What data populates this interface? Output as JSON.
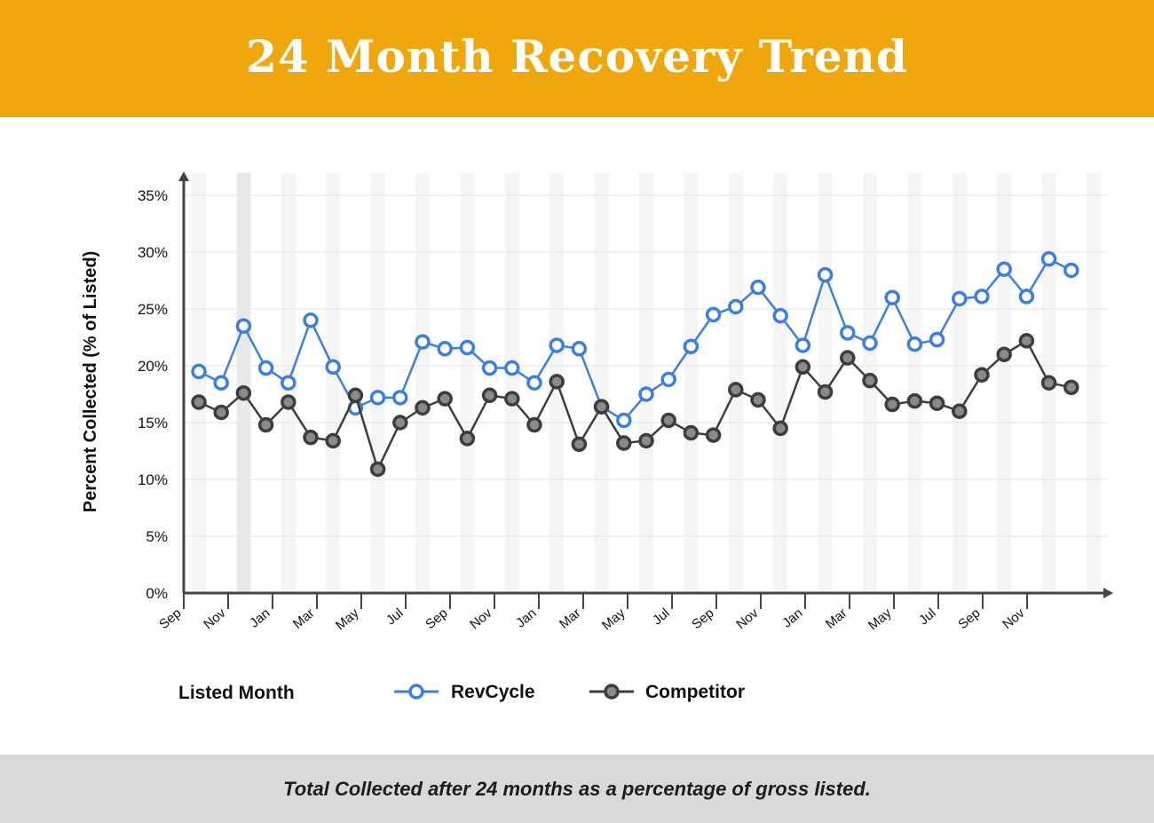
{
  "header": {
    "title": "24 Month Recovery Trend"
  },
  "footer": {
    "caption": "Total Collected after 24 months as a percentage of gross listed."
  },
  "colors": {
    "header_bg": "#f0a70c",
    "revcycle": "#3a7ee8",
    "competitor": "#3d3d3d",
    "footer_bg": "#d9d9d9"
  },
  "chart_data": {
    "type": "line",
    "title": "24 Month Recovery Trend",
    "xlabel": "Listed Month",
    "ylabel": "Percent Collected (% of Listed)",
    "ylim": [
      0,
      35
    ],
    "yticks": [
      "0%",
      "5%",
      "10%",
      "15%",
      "20%",
      "25%",
      "30%",
      "35%"
    ],
    "xticks": [
      "Sep",
      "Nov",
      "Jan",
      "Mar",
      "May",
      "Jul",
      "Sep",
      "Nov",
      "Jan",
      "Mar",
      "May",
      "Jul",
      "Sep",
      "Nov",
      "Jan",
      "Mar",
      "May",
      "Jul",
      "Sep",
      "Nov"
    ],
    "grid": true,
    "legend": "bottom",
    "series": [
      {
        "name": "RevCycle",
        "color": "#3a7ee8",
        "values": [
          19.5,
          18.5,
          23.5,
          19.8,
          18.5,
          24.0,
          19.9,
          16.3,
          17.2,
          17.2,
          22.1,
          21.5,
          21.6,
          19.8,
          19.8,
          18.5,
          21.8,
          21.5,
          16.4,
          15.2,
          17.5,
          18.8,
          21.7,
          24.5,
          25.2,
          26.9,
          24.4,
          21.8,
          28.0,
          22.9,
          22.0,
          26.0,
          21.9,
          22.3,
          25.9,
          26.1,
          28.5,
          26.1,
          29.4,
          28.4
        ],
        "marker_fill": "#ffffff"
      },
      {
        "name": "Competitor",
        "color": "#3d3d3d",
        "values": [
          16.8,
          15.9,
          17.6,
          14.8,
          16.8,
          13.7,
          13.4,
          17.4,
          10.9,
          15.0,
          16.3,
          17.1,
          13.6,
          17.4,
          17.1,
          14.8,
          18.6,
          13.1,
          16.4,
          13.2,
          13.4,
          15.2,
          14.1,
          13.9,
          17.9,
          17.0,
          14.5,
          19.9,
          17.7,
          20.7,
          18.7,
          16.6,
          16.9,
          16.7,
          16.0,
          19.2,
          21.0,
          22.2,
          18.5,
          18.1
        ],
        "marker_fill": "#8a8a8a"
      }
    ]
  }
}
